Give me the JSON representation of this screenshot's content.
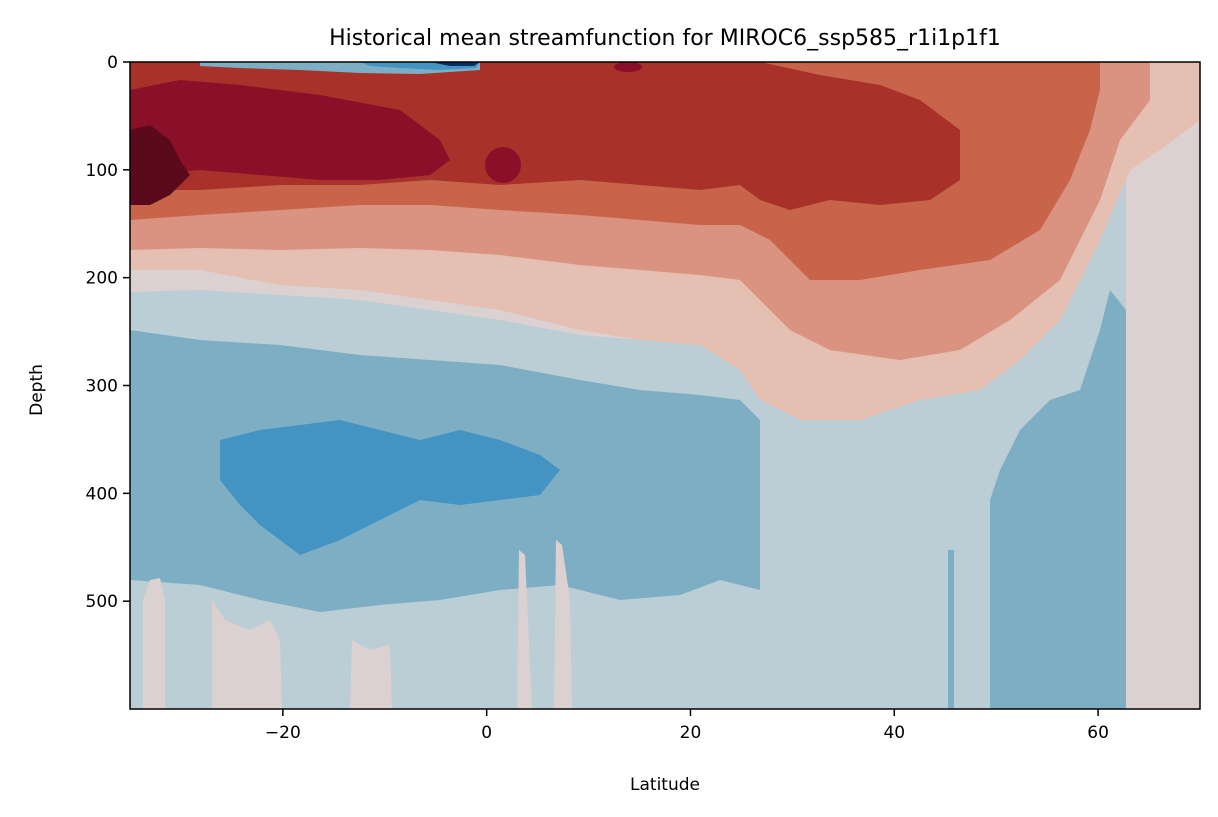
{
  "chart_data": {
    "type": "heatmap",
    "subtype": "filled-contour",
    "title": "Historical mean streamfunction for MIROC6_ssp585_r1i1p1f1",
    "xlabel": "Latitude",
    "ylabel": "Depth",
    "xlim": [
      -35,
      70
    ],
    "ylim": [
      600,
      0
    ],
    "y_inverted": true,
    "xticks": [
      -20,
      0,
      20,
      40,
      60
    ],
    "xtick_labels": [
      "−20",
      "0",
      "20",
      "40",
      "60"
    ],
    "yticks": [
      0,
      100,
      200,
      300,
      400,
      500
    ],
    "ytick_labels": [
      "0",
      "100",
      "200",
      "300",
      "400",
      "500"
    ],
    "colormap": "RdBu_r",
    "grid": false,
    "legend": "none",
    "level_colors": [
      "#053061",
      "#2166ac",
      "#4393c3",
      "#7eaec4",
      "#bbced6",
      "#dbd1d0",
      "#e4bfb2",
      "#d99380",
      "#c8644a",
      "#a8322a",
      "#8a0f28",
      "#5b0a1b"
    ],
    "features": [
      {
        "name": "upper-cell-core",
        "lat_range": [
          -35,
          47
        ],
        "depth_range": [
          40,
          170
        ],
        "level": "max-positive",
        "center": [
          -33,
          105
        ]
      },
      {
        "name": "surface-negative-cell",
        "lat_range": [
          -30,
          3
        ],
        "depth_range": [
          0,
          10
        ],
        "level": "strong-negative"
      },
      {
        "name": "intermediate-negative-cell",
        "lat_range": [
          -35,
          27
        ],
        "depth_range": [
          330,
          500
        ],
        "level": "negative"
      },
      {
        "name": "subpolar-negative-cell",
        "lat_range": [
          50,
          63
        ],
        "depth_range": [
          110,
          600
        ],
        "level": "negative"
      }
    ]
  }
}
